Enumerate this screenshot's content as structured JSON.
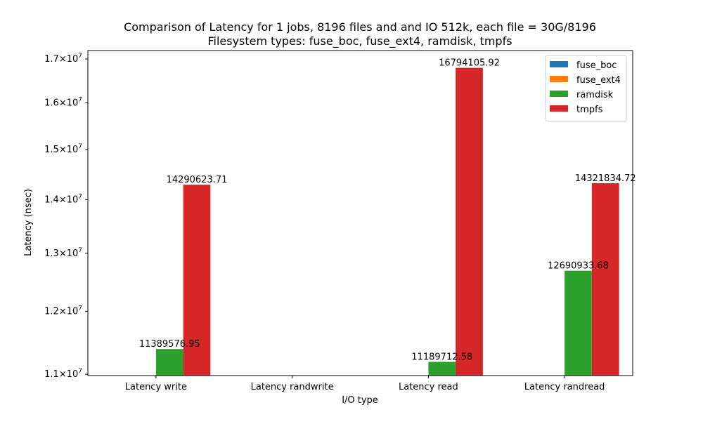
{
  "chart_data": {
    "type": "bar",
    "title": "Comparison of Latency for 1 jobs, 8196 files and  and IO 512k, each file = 30G/8196",
    "subtitle": "Filesystem types: fuse_boc, fuse_ext4, ramdisk, tmpfs",
    "xlabel": "I/O type",
    "ylabel": "Latency (nsec)",
    "yscale": "log",
    "ylim": [
      10980000,
      17200000
    ],
    "yticks": [
      {
        "value": 11000000,
        "mantissa": "1.1",
        "times": "×",
        "base": "10",
        "exp": "7"
      },
      {
        "value": 12000000,
        "mantissa": "1.2",
        "times": "×",
        "base": "10",
        "exp": "7"
      },
      {
        "value": 13000000,
        "mantissa": "1.3",
        "times": "×",
        "base": "10",
        "exp": "7"
      },
      {
        "value": 14000000,
        "mantissa": "1.4",
        "times": "×",
        "base": "10",
        "exp": "7"
      },
      {
        "value": 15000000,
        "mantissa": "1.5",
        "times": "×",
        "base": "10",
        "exp": "7"
      },
      {
        "value": 16000000,
        "mantissa": "1.6",
        "times": "×",
        "base": "10",
        "exp": "7"
      },
      {
        "value": 17000000,
        "mantissa": "1.7",
        "times": "×",
        "base": "10",
        "exp": "7"
      }
    ],
    "categories": [
      "Latency write",
      "Latency randwrite",
      "Latency read",
      "Latency randread"
    ],
    "series": [
      {
        "name": "fuse_boc",
        "color": "#1f77b4",
        "values": [
          null,
          null,
          null,
          null
        ],
        "labels": [
          "",
          "",
          "",
          ""
        ]
      },
      {
        "name": "fuse_ext4",
        "color": "#ff7f0e",
        "values": [
          null,
          null,
          null,
          null
        ],
        "labels": [
          "",
          "",
          "",
          ""
        ]
      },
      {
        "name": "ramdisk",
        "color": "#2ca02c",
        "values": [
          11389576.95,
          null,
          11189712.58,
          12690933.68
        ],
        "labels": [
          "11389576.95",
          "",
          "11189712.58",
          "12690933.68"
        ]
      },
      {
        "name": "tmpfs",
        "color": "#d62728",
        "values": [
          14290623.71,
          null,
          16794105.92,
          14321834.72
        ],
        "labels": [
          "14290623.71",
          "",
          "16794105.92",
          "14321834.72"
        ]
      }
    ],
    "legend": "top-right",
    "grid": false
  }
}
